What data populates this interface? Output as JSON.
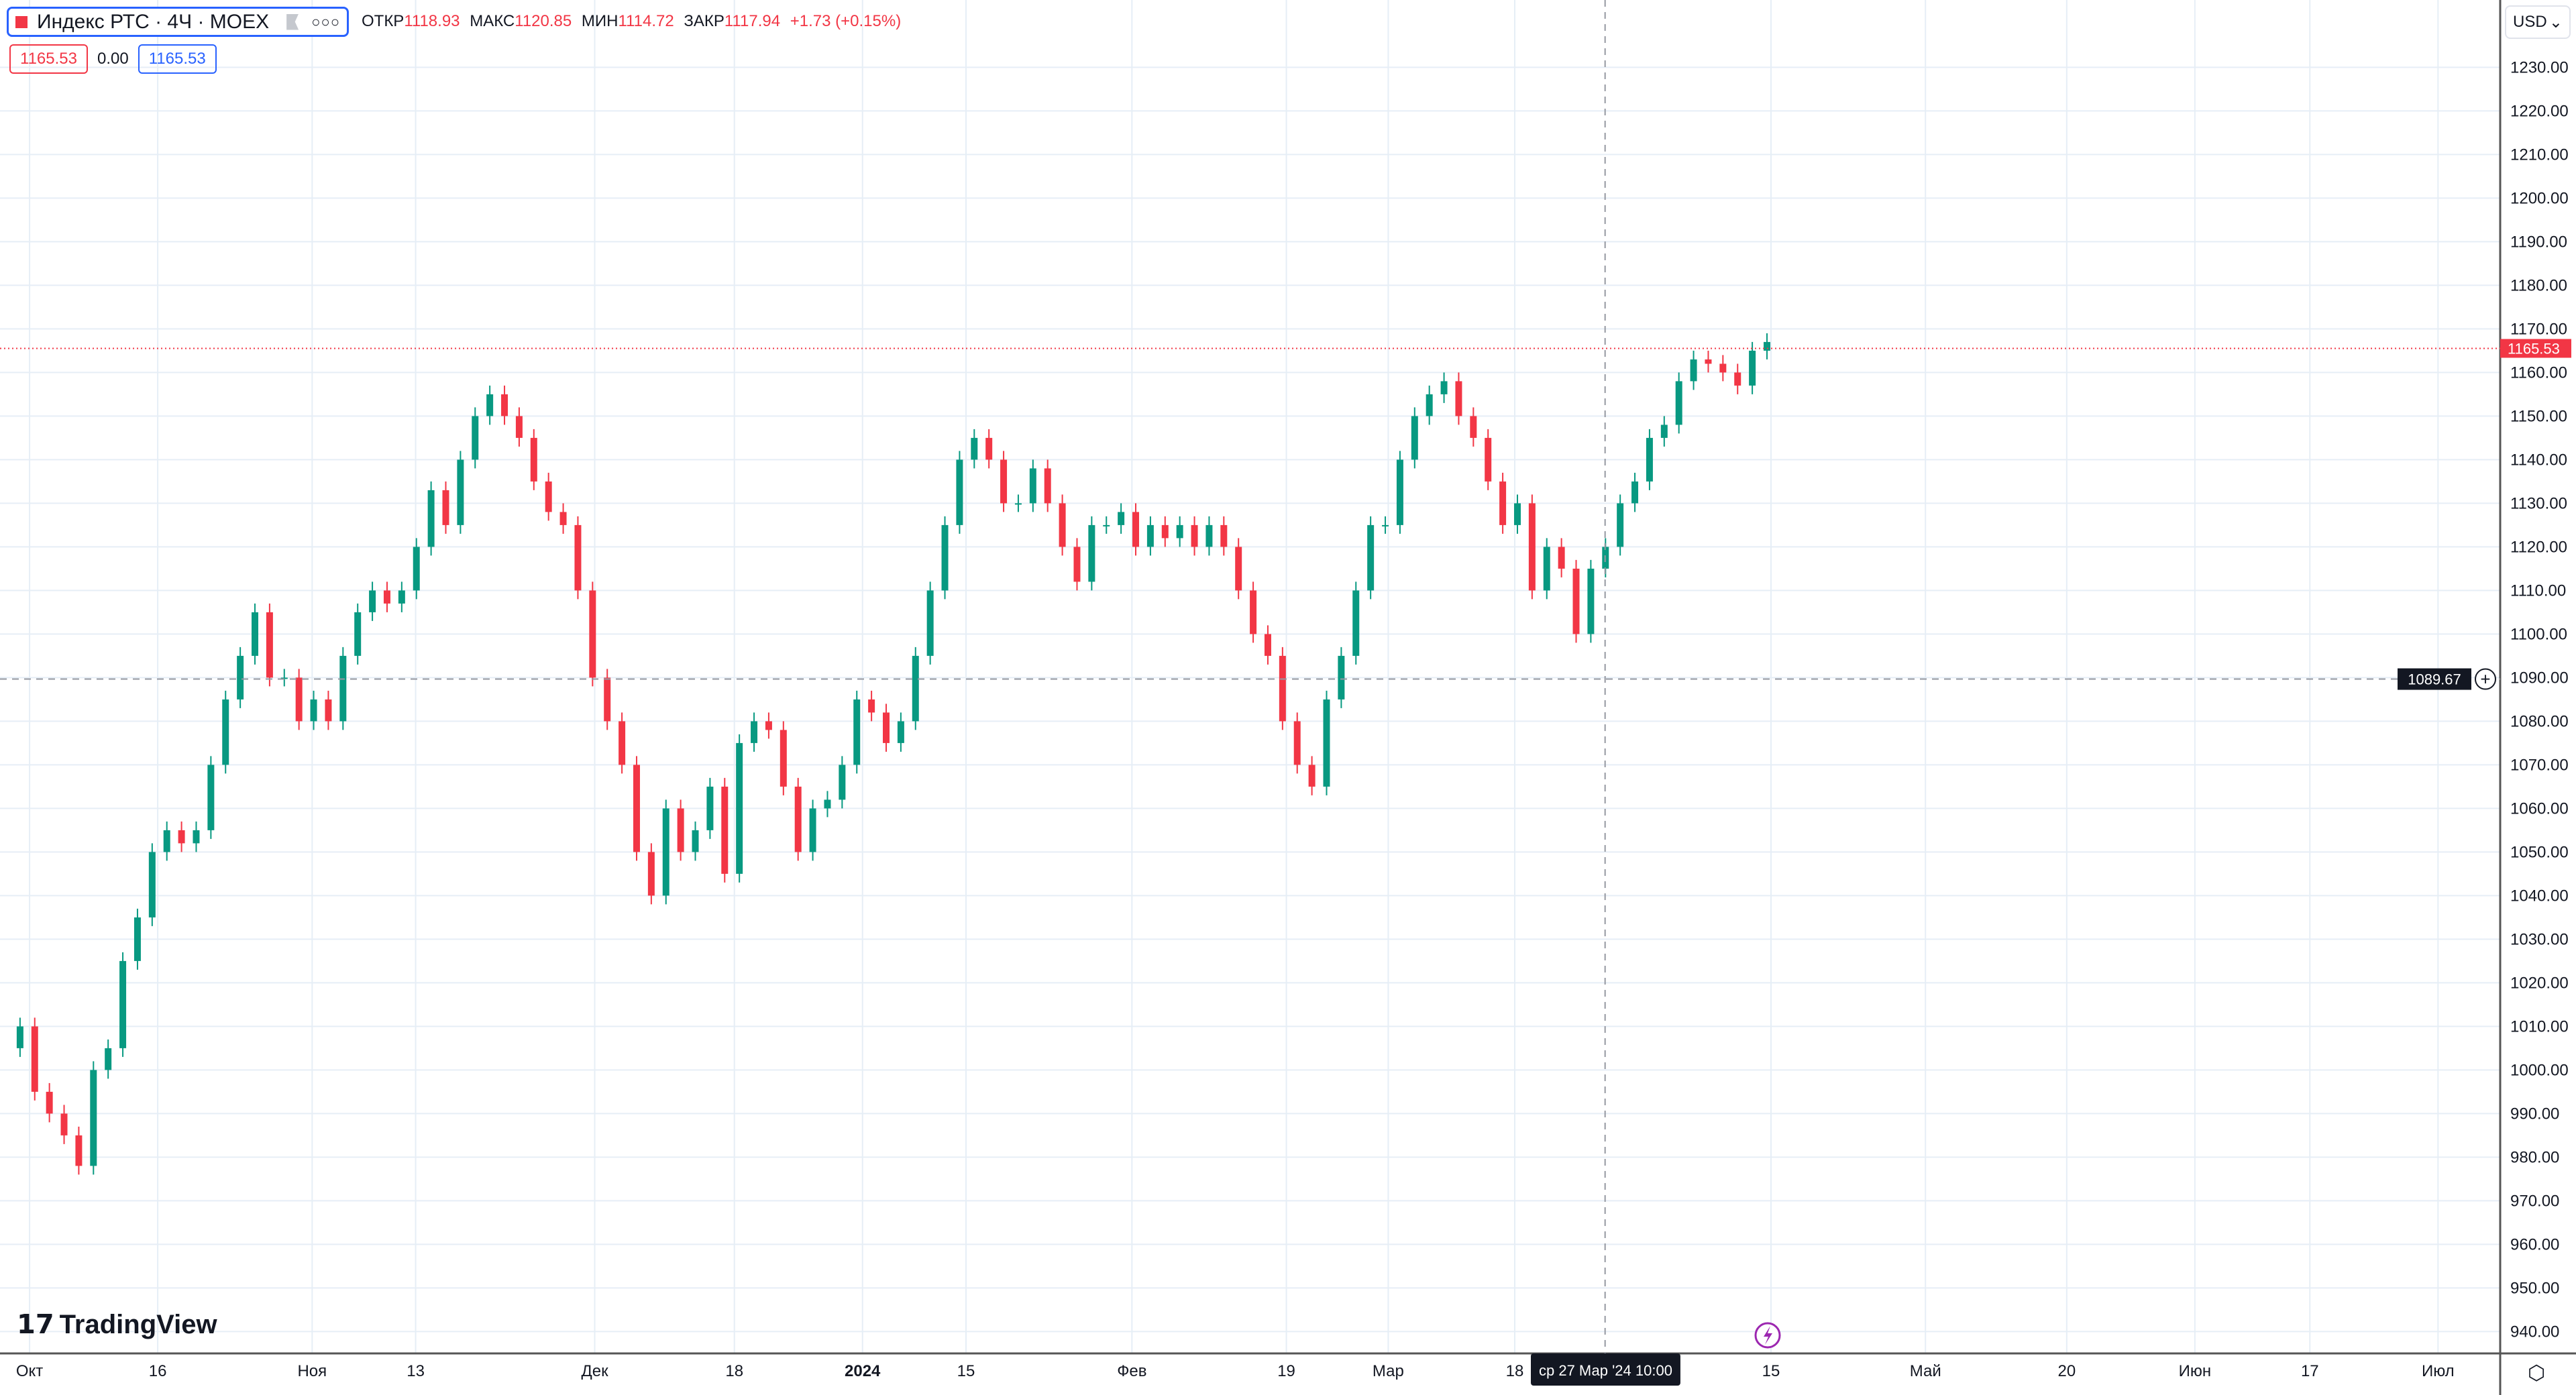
{
  "header": {
    "symbol": "Индекс РТС · 4Ч · MOEX",
    "open_label": "ОТКР",
    "open": "1118.93",
    "high_label": "МАКС",
    "high": "1120.85",
    "low_label": "МИН",
    "low": "1114.72",
    "close_label": "ЗАКР",
    "close": "1117.94",
    "change": "+1.73 (+0.15%)",
    "bid": "1165.53",
    "spread": "0.00",
    "ask": "1165.53",
    "more_icon": "dots-icon",
    "flag_icon": "flag-icon"
  },
  "currency": "USD",
  "logo": "TradingView",
  "crosshair": {
    "price": "1089.67",
    "time": "ср 27 Мар '24   10:00"
  },
  "last_price": "1165.53",
  "colors": {
    "up": "#089981",
    "down": "#f23645",
    "grid": "#e6eef6",
    "accent": "#2962ff"
  },
  "chart_data": {
    "type": "candlestick",
    "ylim": [
      935,
      1235
    ],
    "y_ticks": [
      "1230.00",
      "1220.00",
      "1210.00",
      "1200.00",
      "1190.00",
      "1180.00",
      "1170.00",
      "1160.00",
      "1150.00",
      "1140.00",
      "1130.00",
      "1120.00",
      "1110.00",
      "1100.00",
      "1090.00",
      "1080.00",
      "1070.00",
      "1060.00",
      "1050.00",
      "1040.00",
      "1030.00",
      "1020.00",
      "1010.00",
      "1000.00",
      "990.00",
      "980.00",
      "970.00",
      "960.00",
      "950.00",
      "940.00"
    ],
    "x_ticks": [
      "Окт",
      "16",
      "Ноя",
      "13",
      "Дек",
      "18",
      "2024",
      "15",
      "Фев",
      "19",
      "Мар",
      "18",
      "15",
      "Май",
      "20",
      "Июн",
      "17",
      "Июл"
    ],
    "close": [
      1005,
      1010,
      995,
      990,
      985,
      978,
      1000,
      1005,
      1025,
      1035,
      1050,
      1055,
      1052,
      1055,
      1070,
      1085,
      1095,
      1105,
      1090,
      1090,
      1080,
      1085,
      1080,
      1095,
      1105,
      1110,
      1107,
      1110,
      1120,
      1133,
      1125,
      1140,
      1150,
      1155,
      1150,
      1145,
      1135,
      1128,
      1125,
      1110,
      1090,
      1080,
      1070,
      1050,
      1040,
      1060,
      1050,
      1055,
      1065,
      1045,
      1075,
      1080,
      1078,
      1065,
      1050,
      1060,
      1062,
      1070,
      1085,
      1082,
      1075,
      1080,
      1095,
      1110,
      1125,
      1140,
      1145,
      1140,
      1130,
      1130,
      1138,
      1130,
      1120,
      1112,
      1125,
      1125,
      1128,
      1120,
      1125,
      1122,
      1125,
      1120,
      1125,
      1120,
      1110,
      1100,
      1095,
      1080,
      1070,
      1065,
      1085,
      1095,
      1110,
      1125,
      1125,
      1140,
      1150,
      1155,
      1158,
      1150,
      1145,
      1135,
      1125,
      1130,
      1110,
      1120,
      1115,
      1100,
      1115,
      1120,
      1130,
      1135,
      1145,
      1148,
      1158,
      1163,
      1162,
      1160,
      1157,
      1165,
      1167
    ]
  },
  "tools": {
    "event_icon": "lightning-icon",
    "settings_icon": "gear-icon"
  }
}
